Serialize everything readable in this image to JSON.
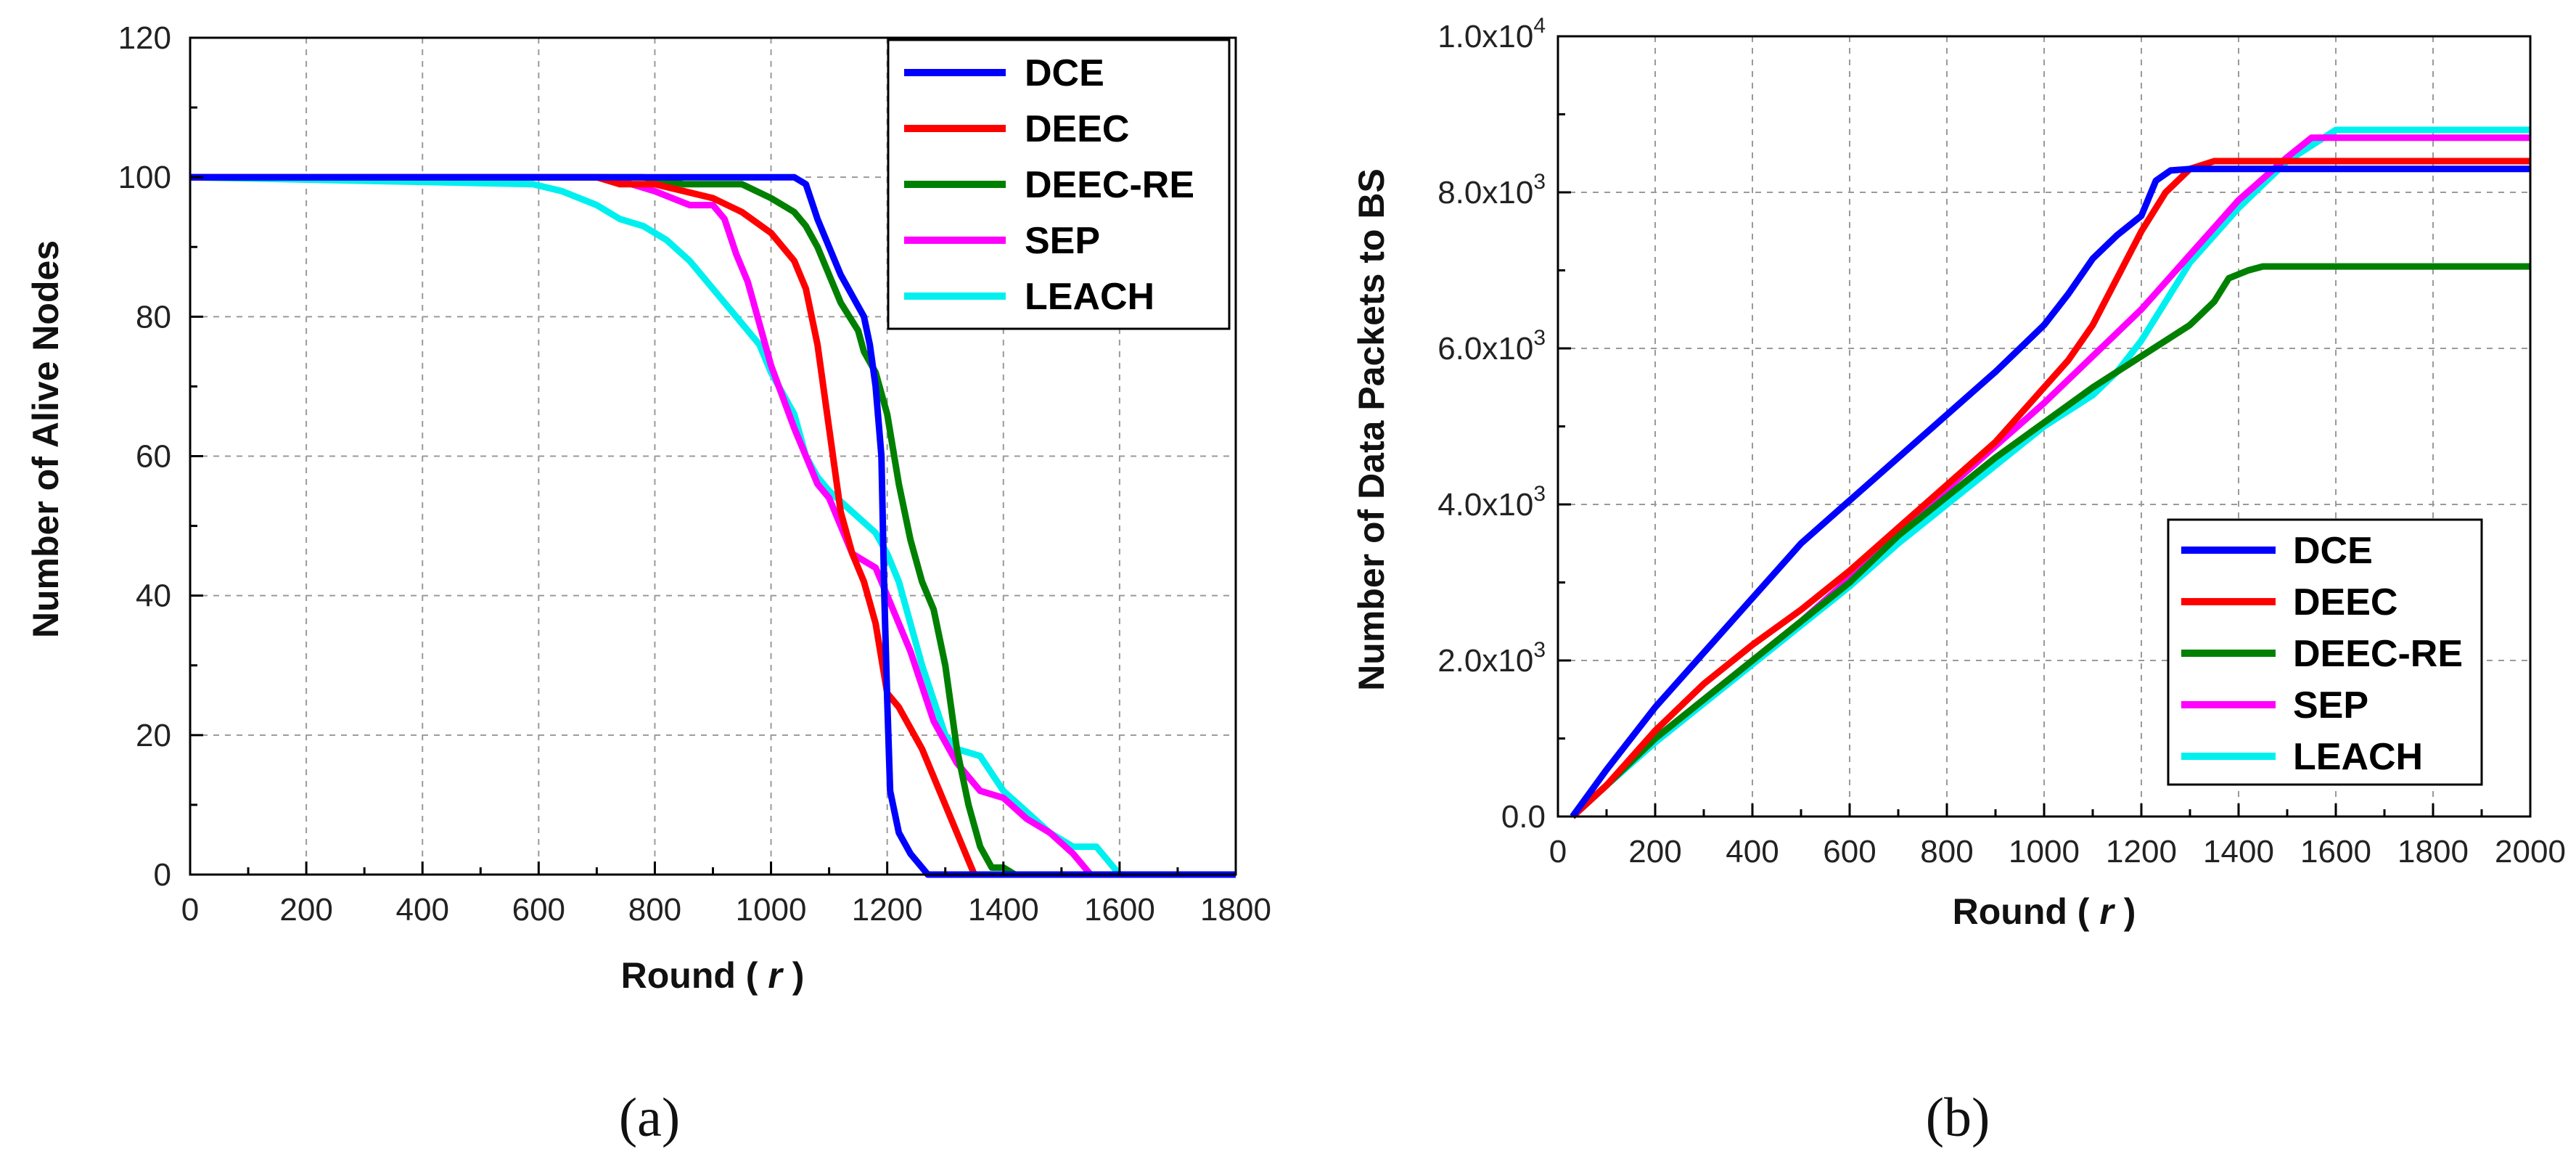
{
  "charts": [
    {
      "id": "a",
      "panel_label": "(a)",
      "chart_data": {
        "type": "line",
        "title": "",
        "xlabel": "Round ( r )",
        "ylabel": "Number of Alive Nodes",
        "xlim": [
          0,
          1800
        ],
        "ylim": [
          0,
          120
        ],
        "xticks": [
          0,
          200,
          400,
          600,
          800,
          1000,
          1200,
          1400,
          1600,
          1800
        ],
        "yticks": [
          0,
          20,
          40,
          60,
          80,
          100,
          120
        ],
        "xtick_labels": [
          "0",
          "200",
          "400",
          "600",
          "800",
          "1000",
          "1200",
          "1400",
          "1600",
          "1800"
        ],
        "ytick_labels": [
          "0",
          "20",
          "40",
          "60",
          "80",
          "100",
          "120"
        ],
        "grid": true,
        "legend_position": "top-right",
        "series": [
          {
            "name": "DCE",
            "color": "#0000ff",
            "x": [
              0,
              1040,
              1060,
              1080,
              1100,
              1120,
              1140,
              1160,
              1170,
              1180,
              1190,
              1195,
              1200,
              1205,
              1210,
              1220,
              1240,
              1260,
              1270,
              1800
            ],
            "y": [
              100,
              100,
              99,
              94,
              90,
              86,
              83,
              80,
              76,
              70,
              60,
              40,
              25,
              12,
              10,
              6,
              3,
              1,
              0,
              0
            ]
          },
          {
            "name": "DEEC",
            "color": "#ff0000",
            "x": [
              0,
              700,
              740,
              800,
              850,
              900,
              950,
              1000,
              1040,
              1060,
              1080,
              1100,
              1120,
              1140,
              1160,
              1180,
              1200,
              1220,
              1260,
              1300,
              1320,
              1340,
              1350,
              1800
            ],
            "y": [
              100,
              100,
              99,
              99,
              98,
              97,
              95,
              92,
              88,
              84,
              76,
              64,
              52,
              46,
              42,
              36,
              26,
              24,
              18,
              10,
              6,
              2,
              0,
              0
            ]
          },
          {
            "name": "DEEC-RE",
            "color": "#008000",
            "x": [
              0,
              780,
              850,
              900,
              950,
              1000,
              1040,
              1060,
              1080,
              1100,
              1120,
              1150,
              1160,
              1180,
              1200,
              1220,
              1240,
              1260,
              1280,
              1300,
              1320,
              1340,
              1360,
              1380,
              1400,
              1420,
              1800
            ],
            "y": [
              100,
              100,
              99,
              99,
              99,
              97,
              95,
              93,
              90,
              86,
              82,
              78,
              75,
              72,
              66,
              56,
              48,
              42,
              38,
              30,
              18,
              10,
              4,
              1,
              1,
              0,
              0
            ]
          },
          {
            "name": "SEP",
            "color": "#ff00ff",
            "x": [
              0,
              720,
              760,
              800,
              860,
              900,
              920,
              940,
              960,
              1000,
              1040,
              1080,
              1100,
              1120,
              1140,
              1160,
              1180,
              1200,
              1240,
              1280,
              1320,
              1360,
              1400,
              1440,
              1480,
              1520,
              1540,
              1550,
              1800
            ],
            "y": [
              100,
              100,
              99,
              98,
              96,
              96,
              94,
              89,
              85,
              73,
              64,
              56,
              54,
              50,
              46,
              45,
              44,
              40,
              32,
              22,
              16,
              12,
              11,
              8,
              6,
              3,
              1,
              0,
              0
            ]
          },
          {
            "name": "LEACH",
            "color": "#00f0f0",
            "x": [
              0,
              590,
              640,
              700,
              740,
              780,
              820,
              860,
              900,
              940,
              980,
              1000,
              1040,
              1060,
              1080,
              1100,
              1140,
              1180,
              1200,
              1220,
              1240,
              1260,
              1280,
              1300,
              1320,
              1360,
              1400,
              1440,
              1480,
              1520,
              1560,
              1580,
              1600,
              1800
            ],
            "y": [
              100,
              99,
              98,
              96,
              94,
              93,
              91,
              88,
              84,
              80,
              76,
              72,
              66,
              60,
              57,
              55,
              52,
              49,
              46,
              42,
              36,
              30,
              25,
              20,
              18,
              17,
              12,
              9,
              6,
              4,
              4,
              2,
              0,
              0
            ]
          }
        ]
      }
    },
    {
      "id": "b",
      "panel_label": "(b)",
      "chart_data": {
        "type": "line",
        "title": "",
        "xlabel": "Round ( r )",
        "ylabel": "Number of Data Packets to BS",
        "xlim": [
          0,
          2000
        ],
        "ylim": [
          0,
          10000
        ],
        "xticks": [
          0,
          200,
          400,
          600,
          800,
          1000,
          1200,
          1400,
          1600,
          1800,
          2000
        ],
        "yticks": [
          0,
          2000,
          4000,
          6000,
          8000,
          10000
        ],
        "xtick_labels": [
          "0",
          "200",
          "400",
          "600",
          "800",
          "1000",
          "1200",
          "1400",
          "1600",
          "1800",
          "2000"
        ],
        "ytick_labels": [
          "0.0",
          "2.0x10^3",
          "4.0x10^3",
          "6.0x10^3",
          "8.0x10^3",
          "1.0x10^4"
        ],
        "grid": true,
        "legend_position": "bottom-right",
        "series": [
          {
            "name": "DCE",
            "color": "#0000ff",
            "x": [
              30,
              100,
              200,
              300,
              400,
              500,
              600,
              700,
              800,
              900,
              1000,
              1050,
              1100,
              1150,
              1200,
              1230,
              1260,
              1300,
              2000
            ],
            "y": [
              0,
              600,
              1400,
              2100,
              2800,
              3500,
              4050,
              4600,
              5150,
              5700,
              6300,
              6700,
              7150,
              7450,
              7700,
              8150,
              8280,
              8300,
              8300
            ]
          },
          {
            "name": "DEEC",
            "color": "#ff0000",
            "x": [
              30,
              100,
              200,
              300,
              400,
              500,
              600,
              700,
              800,
              900,
              1000,
              1050,
              1100,
              1150,
              1200,
              1250,
              1300,
              1350,
              2000
            ],
            "y": [
              0,
              400,
              1100,
              1700,
              2200,
              2650,
              3150,
              3700,
              4250,
              4800,
              5500,
              5850,
              6300,
              6900,
              7500,
              8000,
              8300,
              8400,
              8400
            ]
          },
          {
            "name": "DEEC-RE",
            "color": "#008000",
            "x": [
              30,
              100,
              200,
              300,
              400,
              500,
              600,
              700,
              800,
              900,
              1000,
              1100,
              1200,
              1300,
              1350,
              1380,
              1420,
              1450,
              2000
            ],
            "y": [
              0,
              400,
              1000,
              1500,
              2000,
              2500,
              3000,
              3600,
              4100,
              4600,
              5050,
              5500,
              5900,
              6300,
              6600,
              6900,
              7000,
              7050,
              7050
            ]
          },
          {
            "name": "SEP",
            "color": "#ff00ff",
            "x": [
              30,
              100,
              200,
              300,
              400,
              500,
              600,
              700,
              800,
              900,
              1000,
              1100,
              1200,
              1300,
              1400,
              1500,
              1550,
              1600,
              2000
            ],
            "y": [
              0,
              400,
              1000,
              1500,
              2000,
              2500,
              3050,
              3600,
              4200,
              4750,
              5300,
              5900,
              6500,
              7200,
              7900,
              8450,
              8700,
              8700,
              8700
            ]
          },
          {
            "name": "LEACH",
            "color": "#00f0f0",
            "x": [
              30,
              100,
              200,
              300,
              400,
              500,
              600,
              700,
              800,
              900,
              1000,
              1100,
              1150,
              1200,
              1250,
              1300,
              1400,
              1500,
              1600,
              1650,
              2000
            ],
            "y": [
              0,
              400,
              950,
              1450,
              1950,
              2450,
              2950,
              3500,
              4000,
              4500,
              5000,
              5400,
              5700,
              6100,
              6600,
              7100,
              7800,
              8400,
              8800,
              8800,
              8800
            ]
          }
        ]
      }
    }
  ]
}
